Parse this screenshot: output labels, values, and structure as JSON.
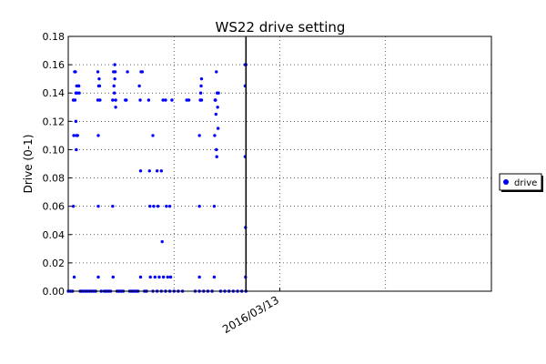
{
  "chart_data": {
    "type": "scatter",
    "title": "WS22 drive setting",
    "ylabel": "Drive (0-1)",
    "xlabel": "",
    "ylim": [
      0,
      0.18
    ],
    "yticks": [
      "0.00",
      "0.02",
      "0.04",
      "0.06",
      "0.08",
      "0.10",
      "0.12",
      "0.14",
      "0.16",
      "0.18"
    ],
    "xlim": [
      0,
      1
    ],
    "xtick_labels": [
      {
        "label": "2016/03/13",
        "at": 0.5
      }
    ],
    "grid": true,
    "legend": {
      "placement": "right-outside",
      "entries": [
        "drive"
      ]
    },
    "marker_color": "#0000ff",
    "vertical_marker_at": 0.42,
    "series": [
      {
        "name": "drive",
        "points": [
          [
            0.0,
            0.0
          ],
          [
            0.01,
            0.0
          ],
          [
            0.005,
            0.0
          ],
          [
            0.012,
            0.135
          ],
          [
            0.013,
            0.11
          ],
          [
            0.012,
            0.06
          ],
          [
            0.014,
            0.01
          ],
          [
            0.015,
            0.155
          ],
          [
            0.016,
            0.135
          ],
          [
            0.017,
            0.155
          ],
          [
            0.018,
            0.14
          ],
          [
            0.018,
            0.12
          ],
          [
            0.019,
            0.11
          ],
          [
            0.019,
            0.1
          ],
          [
            0.02,
            0.145
          ],
          [
            0.021,
            0.14
          ],
          [
            0.022,
            0.11
          ],
          [
            0.024,
            0.145
          ],
          [
            0.025,
            0.145
          ],
          [
            0.026,
            0.14
          ],
          [
            0.028,
            0.0
          ],
          [
            0.03,
            0.0
          ],
          [
            0.035,
            0.0
          ],
          [
            0.04,
            0.0
          ],
          [
            0.045,
            0.0
          ],
          [
            0.05,
            0.0
          ],
          [
            0.055,
            0.0
          ],
          [
            0.06,
            0.0
          ],
          [
            0.065,
            0.0
          ],
          [
            0.07,
            0.135
          ],
          [
            0.07,
            0.155
          ],
          [
            0.071,
            0.11
          ],
          [
            0.071,
            0.06
          ],
          [
            0.071,
            0.01
          ],
          [
            0.072,
            0.145
          ],
          [
            0.073,
            0.15
          ],
          [
            0.074,
            0.145
          ],
          [
            0.075,
            0.135
          ],
          [
            0.078,
            0.0
          ],
          [
            0.085,
            0.0
          ],
          [
            0.09,
            0.0
          ],
          [
            0.095,
            0.0
          ],
          [
            0.1,
            0.0
          ],
          [
            0.105,
            0.135
          ],
          [
            0.105,
            0.06
          ],
          [
            0.106,
            0.01
          ],
          [
            0.107,
            0.155
          ],
          [
            0.108,
            0.145
          ],
          [
            0.109,
            0.14
          ],
          [
            0.11,
            0.16
          ],
          [
            0.111,
            0.155
          ],
          [
            0.112,
            0.13
          ],
          [
            0.112,
            0.135
          ],
          [
            0.11,
            0.15
          ],
          [
            0.115,
            0.0
          ],
          [
            0.12,
            0.0
          ],
          [
            0.125,
            0.0
          ],
          [
            0.13,
            0.0
          ],
          [
            0.135,
            0.135
          ],
          [
            0.137,
            0.135
          ],
          [
            0.14,
            0.155
          ],
          [
            0.145,
            0.0
          ],
          [
            0.15,
            0.0
          ],
          [
            0.155,
            0.0
          ],
          [
            0.16,
            0.0
          ],
          [
            0.165,
            0.0
          ],
          [
            0.168,
            0.145
          ],
          [
            0.17,
            0.135
          ],
          [
            0.171,
            0.085
          ],
          [
            0.171,
            0.01
          ],
          [
            0.172,
            0.155
          ],
          [
            0.175,
            0.155
          ],
          [
            0.18,
            0.0
          ],
          [
            0.185,
            0.0
          ],
          [
            0.19,
            0.135
          ],
          [
            0.192,
            0.085
          ],
          [
            0.193,
            0.06
          ],
          [
            0.194,
            0.01
          ],
          [
            0.2,
            0.11
          ],
          [
            0.202,
            0.06
          ],
          [
            0.205,
            0.01
          ],
          [
            0.21,
            0.085
          ],
          [
            0.212,
            0.06
          ],
          [
            0.215,
            0.01
          ],
          [
            0.22,
            0.085
          ],
          [
            0.222,
            0.035
          ],
          [
            0.224,
            0.135
          ],
          [
            0.225,
            0.01
          ],
          [
            0.23,
            0.135
          ],
          [
            0.232,
            0.06
          ],
          [
            0.235,
            0.01
          ],
          [
            0.24,
            0.06
          ],
          [
            0.242,
            0.01
          ],
          [
            0.245,
            0.135
          ],
          [
            0.2,
            0.0
          ],
          [
            0.21,
            0.0
          ],
          [
            0.22,
            0.0
          ],
          [
            0.23,
            0.0
          ],
          [
            0.24,
            0.0
          ],
          [
            0.25,
            0.0
          ],
          [
            0.26,
            0.0
          ],
          [
            0.27,
            0.0
          ],
          [
            0.28,
            0.135
          ],
          [
            0.285,
            0.135
          ],
          [
            0.3,
            0.0
          ],
          [
            0.31,
            0.0
          ],
          [
            0.31,
            0.01
          ],
          [
            0.31,
            0.06
          ],
          [
            0.31,
            0.11
          ],
          [
            0.312,
            0.135
          ],
          [
            0.313,
            0.14
          ],
          [
            0.314,
            0.145
          ],
          [
            0.315,
            0.15
          ],
          [
            0.315,
            0.135
          ],
          [
            0.32,
            0.0
          ],
          [
            0.33,
            0.0
          ],
          [
            0.34,
            0.0
          ],
          [
            0.345,
            0.06
          ],
          [
            0.345,
            0.01
          ],
          [
            0.346,
            0.11
          ],
          [
            0.347,
            0.135
          ],
          [
            0.348,
            0.135
          ],
          [
            0.349,
            0.125
          ],
          [
            0.35,
            0.155
          ],
          [
            0.35,
            0.1
          ],
          [
            0.351,
            0.095
          ],
          [
            0.352,
            0.14
          ],
          [
            0.353,
            0.13
          ],
          [
            0.354,
            0.115
          ],
          [
            0.355,
            0.14
          ],
          [
            0.36,
            0.0
          ],
          [
            0.37,
            0.0
          ],
          [
            0.38,
            0.0
          ],
          [
            0.39,
            0.0
          ],
          [
            0.4,
            0.0
          ],
          [
            0.41,
            0.0
          ],
          [
            0.418,
            0.16
          ],
          [
            0.418,
            0.145
          ],
          [
            0.418,
            0.095
          ],
          [
            0.419,
            0.045
          ],
          [
            0.419,
            0.01
          ],
          [
            0.42,
            0.0
          ],
          [
            0.42,
            0.16
          ]
        ]
      }
    ]
  }
}
